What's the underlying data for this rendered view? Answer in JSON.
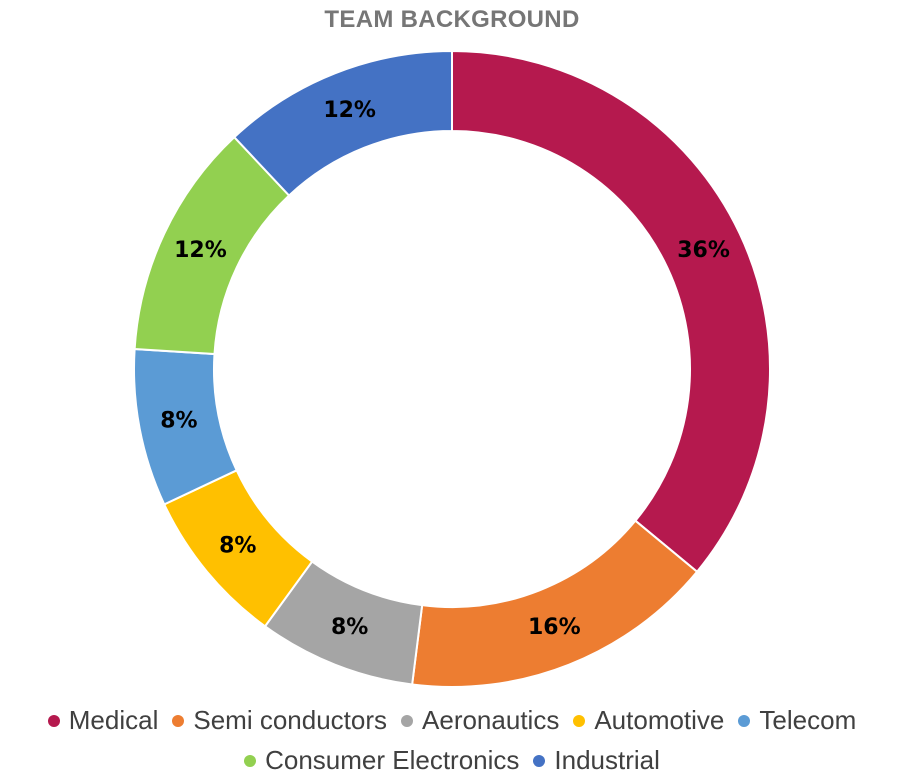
{
  "chart_data": {
    "type": "pie",
    "variant": "donut",
    "title": "TEAM BACKGROUND",
    "categories": [
      "Medical",
      "Semi conductors",
      "Aeronautics",
      "Automotive",
      "Telecom",
      "Consumer Electronics",
      "Industrial"
    ],
    "values": [
      36,
      16,
      8,
      8,
      8,
      12,
      12
    ],
    "data_labels": [
      "36%",
      "16%",
      "8%",
      "8%",
      "8%",
      "12%",
      "12%"
    ],
    "colors": [
      "#B5194E",
      "#ED7D31",
      "#A5A5A5",
      "#FFC000",
      "#5B9BD5",
      "#92D050",
      "#4472C4"
    ],
    "legend_position": "bottom",
    "legend": {
      "row1": [
        {
          "label": "Medical",
          "color": "#B5194E"
        },
        {
          "label": "Semi conductors",
          "color": "#ED7D31"
        },
        {
          "label": "Aeronautics",
          "color": "#A5A5A5"
        },
        {
          "label": "Automotive",
          "color": "#FFC000"
        },
        {
          "label": "Telecom",
          "color": "#5B9BD5"
        }
      ],
      "row2": [
        {
          "label": "Consumer Electronics",
          "color": "#92D050"
        },
        {
          "label": "Industrial",
          "color": "#4472C4"
        }
      ]
    }
  }
}
